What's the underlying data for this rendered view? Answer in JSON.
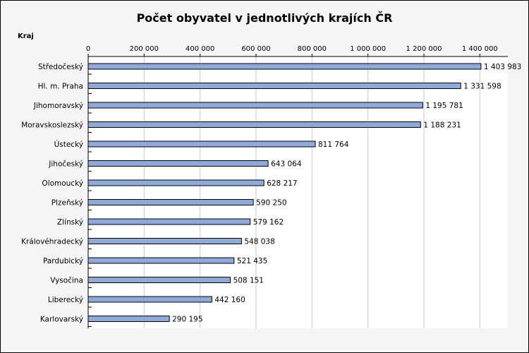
{
  "chart_data": {
    "type": "bar",
    "orientation": "horizontal",
    "title": "Počet obyvatel v jednotlivých krajích ČR",
    "ylabel": "Kraj",
    "xlabel": "",
    "xlim": [
      0,
      1500000
    ],
    "xticks": [
      0,
      200000,
      400000,
      600000,
      800000,
      1000000,
      1200000,
      1400000
    ],
    "xtick_labels": [
      "0",
      "200 000",
      "400 000",
      "600 000",
      "800 000",
      "1 000 000",
      "1 200 000",
      "1 400 000"
    ],
    "x_axis_position": "top",
    "grid": true,
    "legend": false,
    "categories": [
      "Středočeský",
      "Hl. m. Praha",
      "Jihomoravský",
      "Moravskoslezský",
      "Ústecký",
      "Jihočeský",
      "Olomoucký",
      "Plzeňský",
      "Zlínský",
      "Královéhradecký",
      "Pardubický",
      "Vysočina",
      "Liberecký",
      "Karlovarský"
    ],
    "values": [
      1403983,
      1331598,
      1195781,
      1188231,
      811764,
      643064,
      628217,
      590250,
      579162,
      548038,
      521435,
      508151,
      442160,
      290195
    ],
    "data_labels": [
      "1 403 983",
      "1 331 598",
      "1 195 781",
      "1 188 231",
      "811 764",
      "643 064",
      "628 217",
      "590 250",
      "579 162",
      "548 038",
      "521 435",
      "508 151",
      "442 160",
      "290 195"
    ],
    "colors": {
      "bar_fill": "#8eaadb",
      "bar_stroke": "#000000",
      "plot_background": "#ffffff",
      "chart_background": "#f5f5f5",
      "gridline": "#c8c8c8"
    }
  }
}
